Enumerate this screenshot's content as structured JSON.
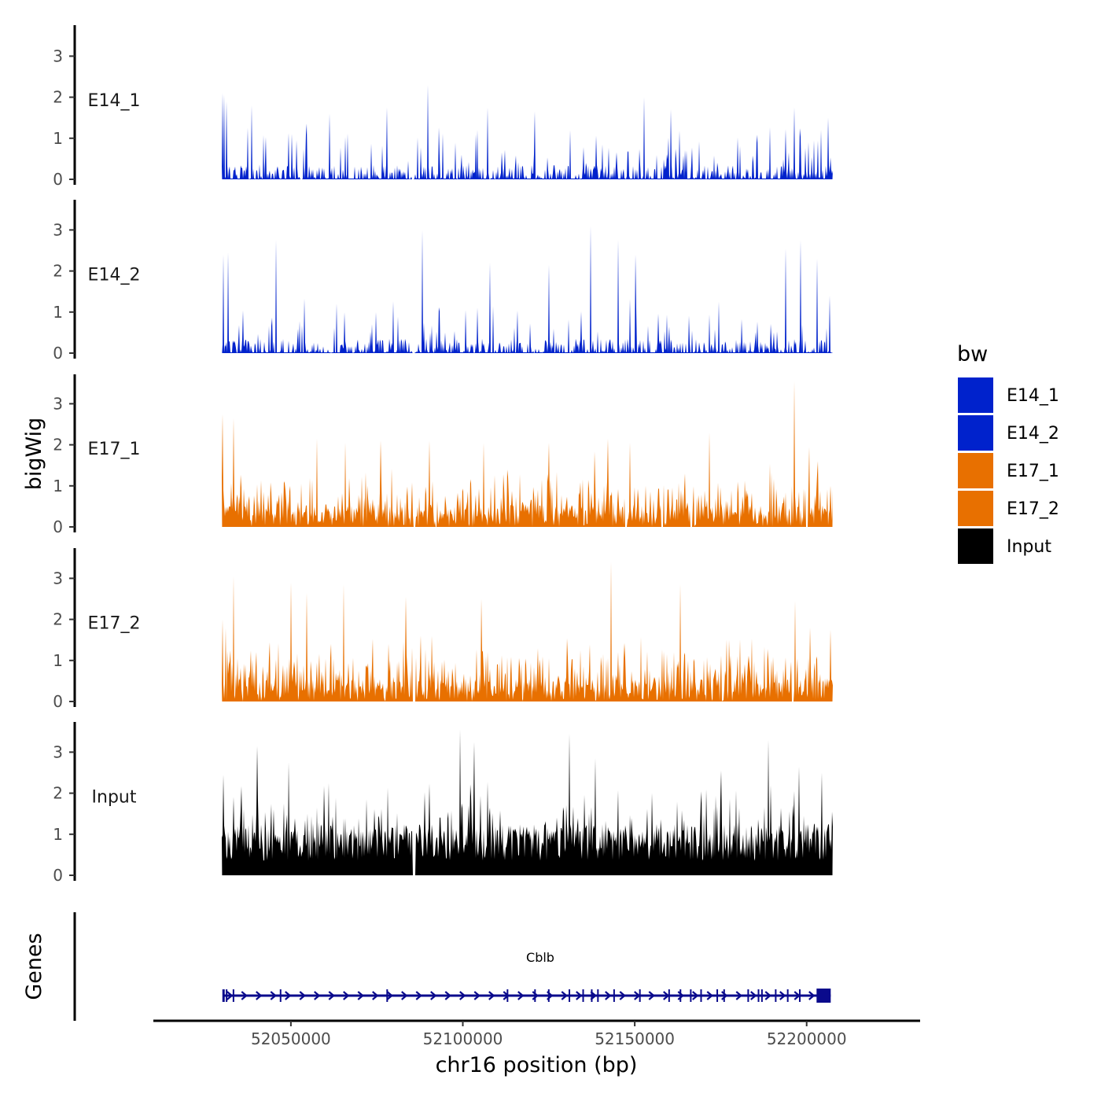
{
  "chart_data": {
    "type": "area",
    "y_axis_title": "bigWig",
    "x_axis_title": "chr16 position (bp)",
    "xlim": [
      52010000,
      52233000
    ],
    "data_range": [
      52030000,
      52207500
    ],
    "x_ticks": [
      52050000,
      52100000,
      52150000,
      52200000
    ],
    "x_tick_labels": [
      "52050000",
      "52100000",
      "52150000",
      "52200000"
    ],
    "ylim": [
      0,
      3.7
    ],
    "y_ticks": [
      0,
      1,
      2,
      3
    ],
    "y_tick_labels": [
      "0",
      "1",
      "2",
      "3"
    ],
    "legend_title": "bw",
    "legend_position": "right",
    "series": [
      {
        "name": "E14_1",
        "color": "#0022CC",
        "peaks": [
          [
            52030100,
            2.1
          ],
          [
            52030600,
            2.05
          ],
          [
            52031200,
            1.9
          ],
          [
            52038500,
            1.8
          ],
          [
            52061200,
            1.6
          ],
          [
            52078000,
            1.75
          ],
          [
            52089800,
            2.3
          ],
          [
            52107300,
            1.75
          ],
          [
            52121000,
            1.65
          ],
          [
            52152800,
            2.0
          ],
          [
            52160500,
            1.7
          ],
          [
            52196500,
            1.75
          ],
          [
            52206300,
            1.5
          ]
        ],
        "gaps": [
          52053000,
          52085500
        ]
      },
      {
        "name": "E14_2",
        "color": "#0022CC",
        "peaks": [
          [
            52030300,
            2.4
          ],
          [
            52031800,
            2.45
          ],
          [
            52045700,
            2.75
          ],
          [
            52088300,
            3.0
          ],
          [
            52108000,
            2.2
          ],
          [
            52125000,
            2.15
          ],
          [
            52137200,
            3.1
          ],
          [
            52145200,
            2.75
          ],
          [
            52150200,
            2.4
          ],
          [
            52193900,
            2.55
          ],
          [
            52198300,
            2.75
          ],
          [
            52203000,
            2.3
          ],
          [
            52206800,
            1.4
          ]
        ],
        "gaps": [
          52085800
        ]
      },
      {
        "name": "E17_1",
        "color": "#E87000",
        "peaks": [
          [
            52030100,
            2.75
          ],
          [
            52033300,
            2.65
          ],
          [
            52057600,
            2.15
          ],
          [
            52065700,
            2.05
          ],
          [
            52076000,
            2.1
          ],
          [
            52090300,
            2.1
          ],
          [
            52106000,
            2.05
          ],
          [
            52125100,
            2.05
          ],
          [
            52142300,
            2.15
          ],
          [
            52148600,
            2.05
          ],
          [
            52171600,
            2.3
          ],
          [
            52196500,
            3.55
          ],
          [
            52200800,
            1.95
          ],
          [
            52207000,
            1.0
          ]
        ],
        "gaps": [
          52085900,
          52147500,
          52158000,
          52166500,
          52200000
        ]
      },
      {
        "name": "E17_2",
        "color": "#E87000",
        "peaks": [
          [
            52030100,
            2.0
          ],
          [
            52033300,
            3.05
          ],
          [
            52050000,
            2.9
          ],
          [
            52054600,
            2.65
          ],
          [
            52065400,
            2.85
          ],
          [
            52083400,
            2.55
          ],
          [
            52105400,
            2.5
          ],
          [
            52143200,
            3.4
          ],
          [
            52163200,
            2.85
          ],
          [
            52196700,
            2.45
          ],
          [
            52201000,
            1.8
          ],
          [
            52207000,
            1.75
          ]
        ],
        "gaps": [
          52085700,
          52085900,
          52196000
        ]
      },
      {
        "name": "Input",
        "color": "#000000",
        "peaks": [
          [
            52030400,
            2.45
          ],
          [
            52040200,
            3.15
          ],
          [
            52049300,
            2.75
          ],
          [
            52099200,
            3.55
          ],
          [
            52103300,
            3.25
          ],
          [
            52131000,
            3.45
          ],
          [
            52138600,
            2.85
          ],
          [
            52175200,
            2.55
          ],
          [
            52188800,
            3.3
          ],
          [
            52197700,
            2.65
          ],
          [
            52204300,
            2.5
          ],
          [
            52207300,
            1.55
          ]
        ],
        "gaps": [
          52085800,
          52085950
        ]
      }
    ],
    "genes_track": {
      "title": "Genes",
      "gene_name": "Cblb",
      "color": "#0A0A8C",
      "strand": "+",
      "start": 52030300,
      "end": 52207000,
      "exons": [
        52031300,
        52033300,
        52047000,
        52078000,
        52113000,
        52121000,
        52125000,
        52131000,
        52135000,
        52137500,
        52139300,
        52144000,
        52151500,
        52160000,
        52163300,
        52166300,
        52169300,
        52174000,
        52176000,
        52183000,
        52186000,
        52187000,
        52191000,
        52194500,
        52198000
      ]
    }
  }
}
